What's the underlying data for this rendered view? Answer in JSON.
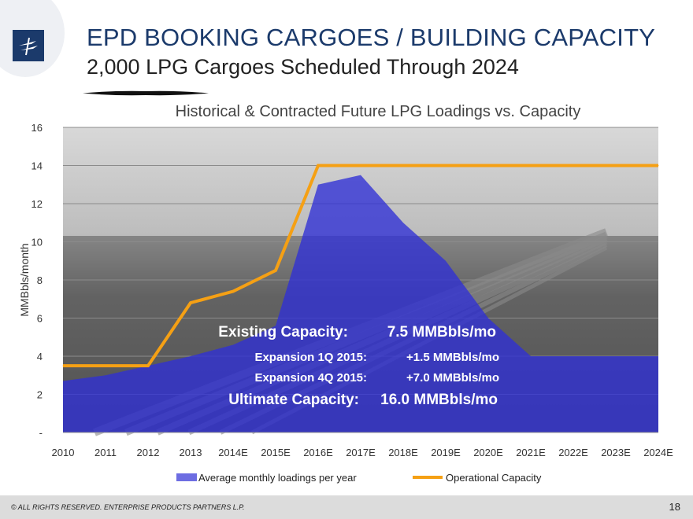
{
  "header": {
    "title": "EPD BOOKING CARGOES / BUILDING CAPACITY",
    "subtitle": "2,000 LPG Cargoes Scheduled Through 2024"
  },
  "chart_data": {
    "type": "area",
    "title": "Historical & Contracted Future LPG Loadings vs. Capacity",
    "ylabel": "MMBbls/month",
    "xlabel": "",
    "ylim": [
      0,
      16
    ],
    "y_ticks": [
      "-",
      "2",
      "4",
      "6",
      "8",
      "10",
      "12",
      "14",
      "16"
    ],
    "categories": [
      "2010",
      "2011",
      "2012",
      "2013",
      "2014E",
      "2015E",
      "2016E",
      "2017E",
      "2018E",
      "2019E",
      "2020E",
      "2021E",
      "2022E",
      "2023E",
      "2024E"
    ],
    "series": [
      {
        "name": "Average monthly loadings per year",
        "type": "area",
        "color": "#2f2fd6",
        "values": [
          2.7,
          3.0,
          3.5,
          4.0,
          4.6,
          5.6,
          13.0,
          13.5,
          11.0,
          9.0,
          6.0,
          4.0,
          4.0,
          4.0,
          4.0
        ]
      },
      {
        "name": "Operational Capacity",
        "type": "line",
        "color": "#f5a014",
        "values": [
          3.5,
          3.5,
          3.5,
          6.8,
          7.4,
          8.5,
          14.0,
          14.0,
          14.0,
          14.0,
          14.0,
          14.0,
          14.0,
          14.0,
          14.0
        ]
      }
    ],
    "grid": true,
    "legend": "bottom",
    "annotations": [
      {
        "label": "Existing Capacity:",
        "value": "7.5 MMBbls/mo",
        "size": "large"
      },
      {
        "label": "Expansion 1Q 2015:",
        "value": "+1.5 MMBbls/mo",
        "size": "small"
      },
      {
        "label": "Expansion 4Q 2015:",
        "value": "+7.0 MMBbls/mo",
        "size": "small"
      },
      {
        "label": "Ultimate Capacity:",
        "value": "16.0 MMBbls/mo",
        "size": "large"
      }
    ]
  },
  "footer": {
    "copyright": "© ALL RIGHTS RESERVED. ENTERPRISE PRODUCTS PARTNERS L.P.",
    "page_number": "18"
  }
}
